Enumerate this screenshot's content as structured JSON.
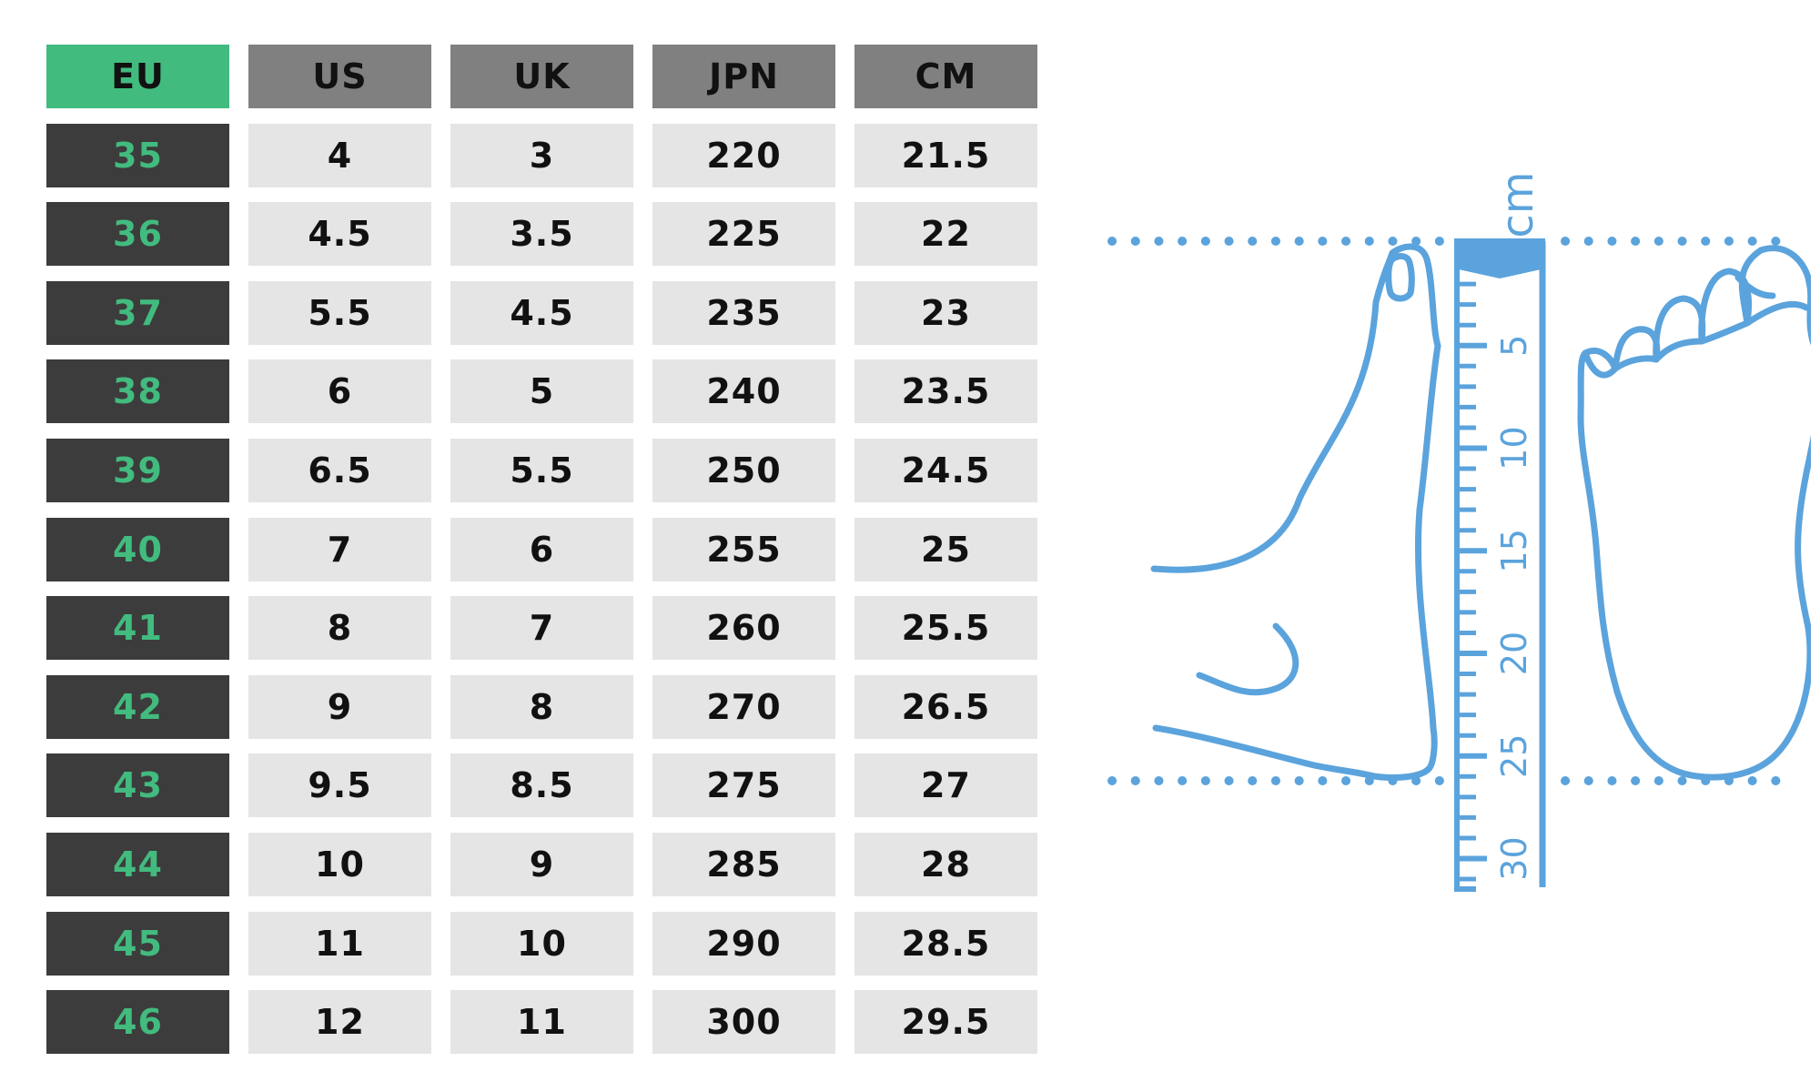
{
  "table": {
    "headers": [
      "EU",
      "US",
      "UK",
      "JPN",
      "CM"
    ],
    "rows": [
      [
        "35",
        "4",
        "3",
        "220",
        "21.5"
      ],
      [
        "36",
        "4.5",
        "3.5",
        "225",
        "22"
      ],
      [
        "37",
        "5.5",
        "4.5",
        "235",
        "23"
      ],
      [
        "38",
        "6",
        "5",
        "240",
        "23.5"
      ],
      [
        "39",
        "6.5",
        "5.5",
        "250",
        "24.5"
      ],
      [
        "40",
        "7",
        "6",
        "255",
        "25"
      ],
      [
        "41",
        "8",
        "7",
        "260",
        "25.5"
      ],
      [
        "42",
        "9",
        "8",
        "270",
        "26.5"
      ],
      [
        "43",
        "9.5",
        "8.5",
        "275",
        "27"
      ],
      [
        "44",
        "10",
        "9",
        "285",
        "28"
      ],
      [
        "45",
        "11",
        "10",
        "290",
        "28.5"
      ],
      [
        "46",
        "12",
        "11",
        "300",
        "29.5"
      ]
    ]
  },
  "ruler": {
    "unit_label": "cm",
    "marks": [
      "5",
      "10",
      "15",
      "20",
      "25",
      "30"
    ]
  },
  "colors": {
    "eu_green": "#42bb7f",
    "header_gray": "#808080",
    "eu_cell_dark": "#3c3c3c",
    "cell_light": "#e5e5e5",
    "diagram_blue": "#5ba3dc"
  },
  "icons": [
    "foot-side-icon",
    "foot-sole-icon",
    "ruler-icon"
  ]
}
